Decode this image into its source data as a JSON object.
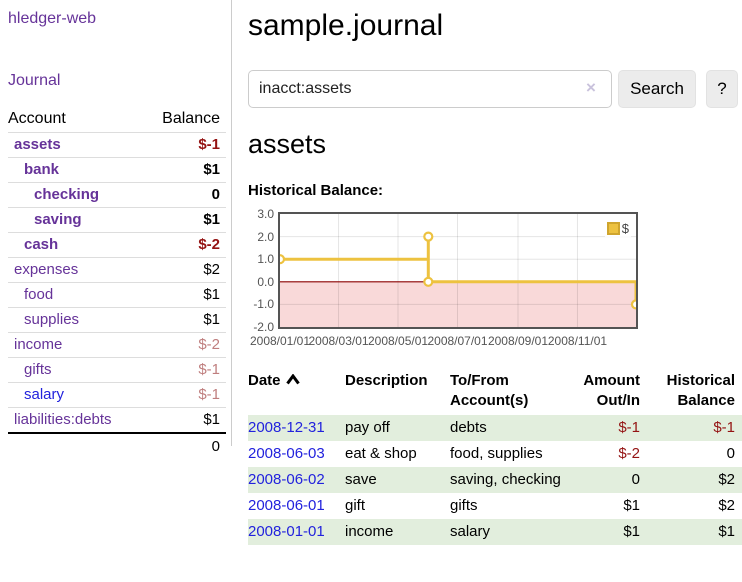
{
  "brand": "hledger-web",
  "colors": {
    "accent_purple": "#663399",
    "link_blue": "#2222dd",
    "negative_strong": "#941313",
    "negative_soft": "#bf7e7e",
    "row_stripe_green": "#e2eedd"
  },
  "sidebar": {
    "journal_link": "Journal",
    "accounts_table": {
      "account_header": "Account",
      "balance_header": "Balance",
      "rows": [
        {
          "name": "assets",
          "balance": "$-1",
          "indent": 0,
          "bold": true,
          "balance_style": "neg-strong"
        },
        {
          "name": "bank",
          "balance": "$1",
          "indent": 1,
          "bold": true,
          "balance_style": "pos"
        },
        {
          "name": "checking",
          "balance": "0",
          "indent": 2,
          "bold": true,
          "balance_style": "pos"
        },
        {
          "name": "saving",
          "balance": "$1",
          "indent": 2,
          "bold": true,
          "balance_style": "pos"
        },
        {
          "name": "cash",
          "balance": "$-2",
          "indent": 1,
          "bold": true,
          "balance_style": "neg-strong"
        },
        {
          "name": "expenses",
          "balance": "$2",
          "indent": 0,
          "bold": false,
          "balance_style": "pos"
        },
        {
          "name": "food",
          "balance": "$1",
          "indent": 1,
          "bold": false,
          "balance_style": "pos"
        },
        {
          "name": "supplies",
          "balance": "$1",
          "indent": 1,
          "bold": false,
          "balance_style": "pos"
        },
        {
          "name": "income",
          "balance": "$-2",
          "indent": 0,
          "bold": false,
          "balance_style": "neg-soft"
        },
        {
          "name": "gifts",
          "balance": "$-1",
          "indent": 1,
          "bold": false,
          "balance_style": "neg-soft"
        },
        {
          "name": "salary",
          "balance": "$-1",
          "indent": 1,
          "bold": false,
          "balance_style": "neg-soft",
          "link_color": "blue"
        },
        {
          "name": "liabilities:debts",
          "balance": "$1",
          "indent": 0,
          "bold": false,
          "balance_style": "pos"
        }
      ],
      "total": "0"
    }
  },
  "main": {
    "title": "sample.journal",
    "search": {
      "value": "inacct:assets",
      "clear_icon": "×",
      "search_button": "Search",
      "help_button": "?"
    },
    "account_heading": "assets",
    "chart_heading": "Historical Balance:",
    "chart_data": {
      "type": "line",
      "title": "Historical Balance",
      "legend": [
        {
          "label": "$",
          "color": "#edc240"
        }
      ],
      "legend_position": "top-right",
      "grid": true,
      "x_range": [
        "2008/01/01",
        "2008/12/31"
      ],
      "ylim": [
        -2,
        3
      ],
      "y_ticks": [
        3.0,
        2.0,
        1.0,
        0.0,
        -1.0,
        -2.0
      ],
      "x_ticks": [
        "2008/01/01",
        "2008/03/01",
        "2008/05/01",
        "2008/07/01",
        "2008/09/01",
        "2008/11/01"
      ],
      "negative_region_color": "#f9d9d9",
      "zero_line_color": "#8b0000",
      "gridline_color": "rgba(0,0,0,0.10)",
      "series": [
        {
          "name": "$",
          "color": "#edc240",
          "points": [
            {
              "date": "2008/01/01",
              "value": 1,
              "marker": true
            },
            {
              "date": "2008/06/01",
              "value": 1,
              "marker": false
            },
            {
              "date": "2008/06/01",
              "value": 2,
              "marker": true
            },
            {
              "date": "2008/06/01",
              "value": 0,
              "marker": true
            },
            {
              "date": "2008/12/31",
              "value": 0,
              "marker": false
            },
            {
              "date": "2008/12/31",
              "value": -1,
              "marker": true
            }
          ]
        }
      ]
    },
    "register": {
      "headers": {
        "date": "Date",
        "description": "Description",
        "accounts": "To/From Account(s)",
        "amount": "Amount Out/In",
        "balance": "Historical Balance"
      },
      "rows": [
        {
          "date": "2008-12-31",
          "description": "pay off",
          "accounts": "debts",
          "amount": "$-1",
          "amount_neg": true,
          "balance": "$-1",
          "balance_neg": true
        },
        {
          "date": "2008-06-03",
          "description": "eat & shop",
          "accounts": "food, supplies",
          "amount": "$-2",
          "amount_neg": true,
          "balance": "0",
          "balance_neg": false
        },
        {
          "date": "2008-06-02",
          "description": "save",
          "accounts": "saving, checking",
          "amount": "0",
          "amount_neg": false,
          "balance": "$2",
          "balance_neg": false
        },
        {
          "date": "2008-06-01",
          "description": "gift",
          "accounts": "gifts",
          "amount": "$1",
          "amount_neg": false,
          "balance": "$2",
          "balance_neg": false
        },
        {
          "date": "2008-01-01",
          "description": "income",
          "accounts": "salary",
          "amount": "$1",
          "amount_neg": false,
          "balance": "$1",
          "balance_neg": false
        }
      ]
    }
  }
}
